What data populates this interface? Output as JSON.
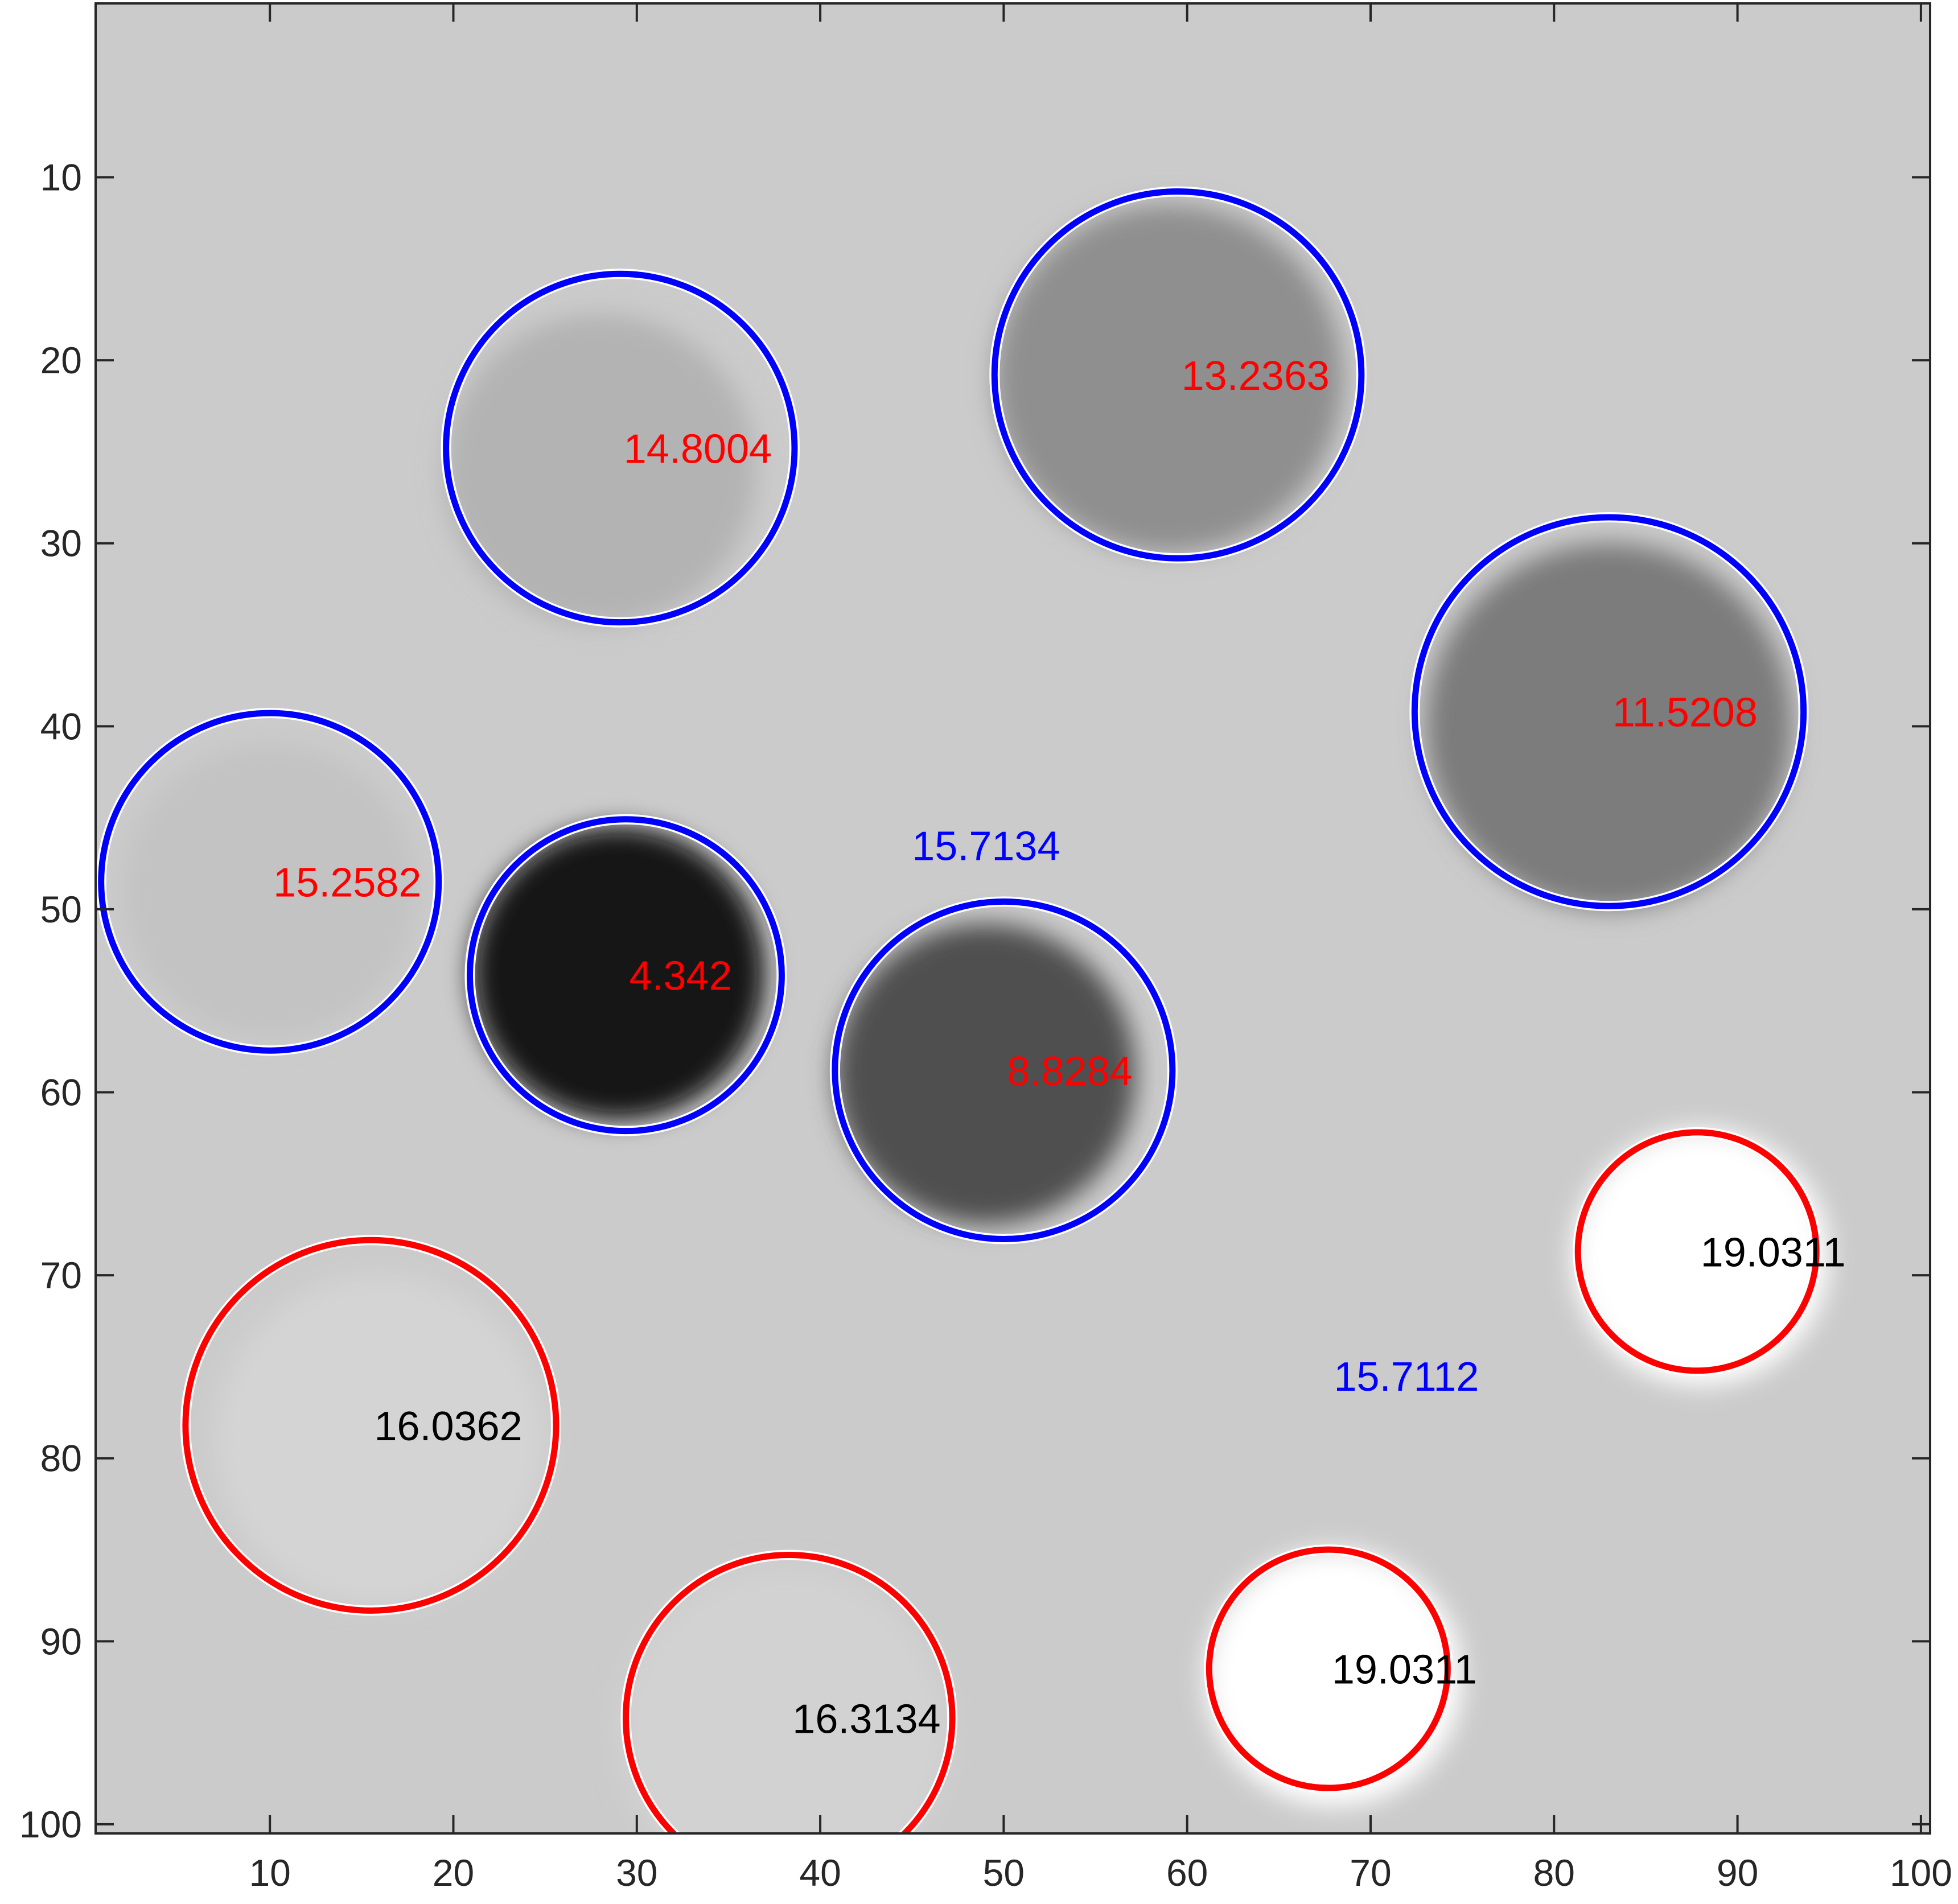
{
  "chart_data": {
    "type": "image-with-circle-annotations",
    "xlim": [
      0.5,
      100.5
    ],
    "ylim": [
      0.5,
      100.5
    ],
    "y_reversed": true,
    "xticks": [
      10,
      20,
      30,
      40,
      50,
      60,
      70,
      80,
      90,
      100
    ],
    "yticks": [
      10,
      20,
      30,
      40,
      50,
      60,
      70,
      80,
      90,
      100
    ],
    "background_gray": "#cbcbcb",
    "blobs": [
      {
        "x": 28,
        "y": 26,
        "r": 8.5,
        "shade": "#b3b3b3"
      },
      {
        "x": 59,
        "y": 21,
        "r": 9.5,
        "shade": "#8f8f8f"
      },
      {
        "x": 83,
        "y": 40,
        "r": 10,
        "shade": "#7b7b7b"
      },
      {
        "x": 10,
        "y": 49,
        "r": 8,
        "shade": "#c3c3c3"
      },
      {
        "x": 29,
        "y": 53.5,
        "r": 8,
        "shade": "#161616"
      },
      {
        "x": 49,
        "y": 59,
        "r": 8.2,
        "shade": "#4f4f4f"
      },
      {
        "x": 88,
        "y": 69,
        "r": 7,
        "shade": "#ffffff"
      },
      {
        "x": 16,
        "y": 79,
        "r": 9,
        "shade": "#d4d4d4"
      },
      {
        "x": 38,
        "y": 95,
        "r": 9,
        "shade": "#d2d2d2"
      },
      {
        "x": 68,
        "y": 92,
        "r": 7,
        "shade": "#ffffff"
      }
    ],
    "circles": [
      {
        "x": 29.1,
        "y": 24.8,
        "r": 9.5,
        "color": "#0000ff",
        "label": "14.8004",
        "label_color": "#ff0000"
      },
      {
        "x": 59.5,
        "y": 20.8,
        "r": 10.0,
        "color": "#0000ff",
        "label": "13.2363",
        "label_color": "#ff0000"
      },
      {
        "x": 83.0,
        "y": 39.2,
        "r": 10.6,
        "color": "#0000ff",
        "label": "11.5208",
        "label_color": "#ff0000"
      },
      {
        "x": 10.0,
        "y": 48.5,
        "r": 9.2,
        "color": "#0000ff",
        "label": "15.2582",
        "label_color": "#ff0000"
      },
      {
        "x": 29.4,
        "y": 53.6,
        "r": 8.5,
        "color": "#0000ff",
        "label": "4.342",
        "label_color": "#ff0000"
      },
      {
        "x": 50.0,
        "y": 58.8,
        "r": 9.2,
        "color": "#0000ff",
        "label": "8.8284",
        "label_color": "#ff0000"
      },
      {
        "x": 87.8,
        "y": 68.7,
        "r": 6.5,
        "color": "#ff0000",
        "label": "19.0311",
        "label_color": "#000000"
      },
      {
        "x": 15.5,
        "y": 78.2,
        "r": 10.1,
        "color": "#ff0000",
        "label": "16.0362",
        "label_color": "#000000"
      },
      {
        "x": 38.3,
        "y": 94.2,
        "r": 8.9,
        "color": "#ff0000",
        "label": "16.3134",
        "label_color": "#000000"
      },
      {
        "x": 67.7,
        "y": 91.5,
        "r": 6.5,
        "color": "#ff0000",
        "label": "19.0311",
        "label_color": "#000000"
      }
    ],
    "free_labels": [
      {
        "x": 45.0,
        "y": 46.5,
        "text": "15.7134",
        "color": "#0000ff"
      },
      {
        "x": 68.0,
        "y": 75.5,
        "text": "15.7112",
        "color": "#0000ff"
      }
    ]
  }
}
